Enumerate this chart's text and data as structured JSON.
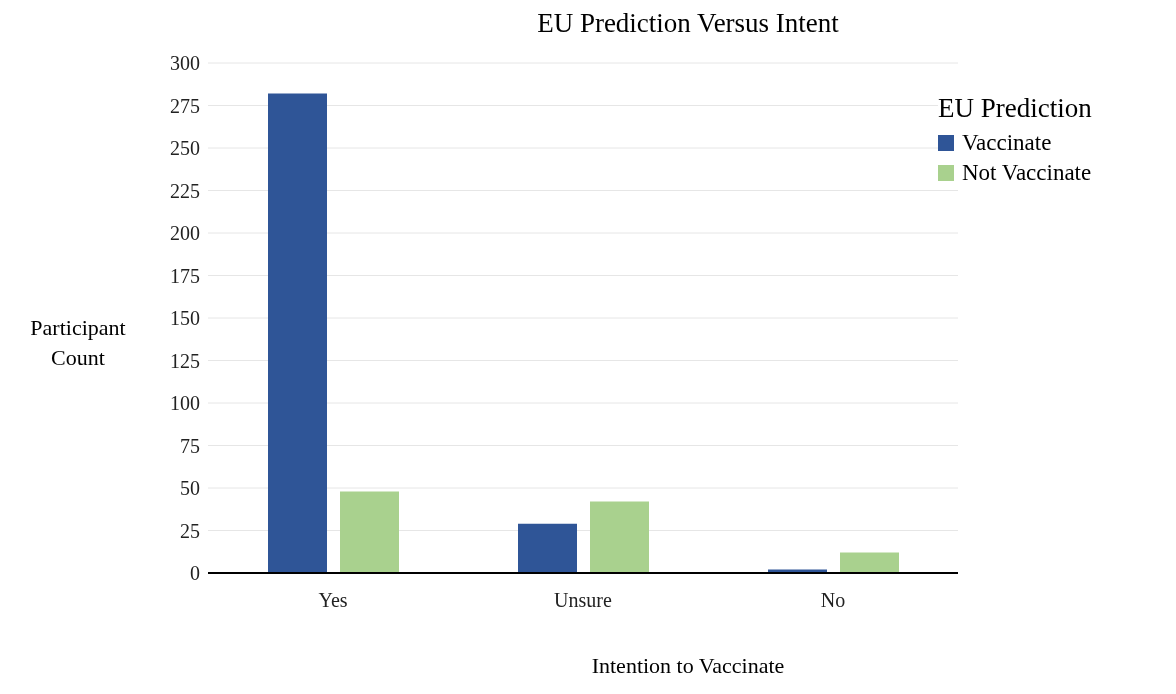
{
  "chart_data": {
    "type": "bar",
    "title": "EU Prediction Versus Intent",
    "xlabel": "Intention to Vaccinate",
    "ylabel": "Participant Count",
    "legend_title": "EU Prediction",
    "categories": [
      "Yes",
      "Unsure",
      "No"
    ],
    "series": [
      {
        "name": "Vaccinate",
        "color": "#2f5597",
        "values": [
          282,
          29,
          2
        ]
      },
      {
        "name": "Not Vaccinate",
        "color": "#a9d18e",
        "values": [
          48,
          42,
          12
        ]
      }
    ],
    "ylim": [
      0,
      300
    ],
    "yticks": [
      0,
      25,
      50,
      75,
      100,
      125,
      150,
      175,
      200,
      225,
      250,
      275,
      300
    ],
    "grid": "y",
    "legend": "top right"
  }
}
